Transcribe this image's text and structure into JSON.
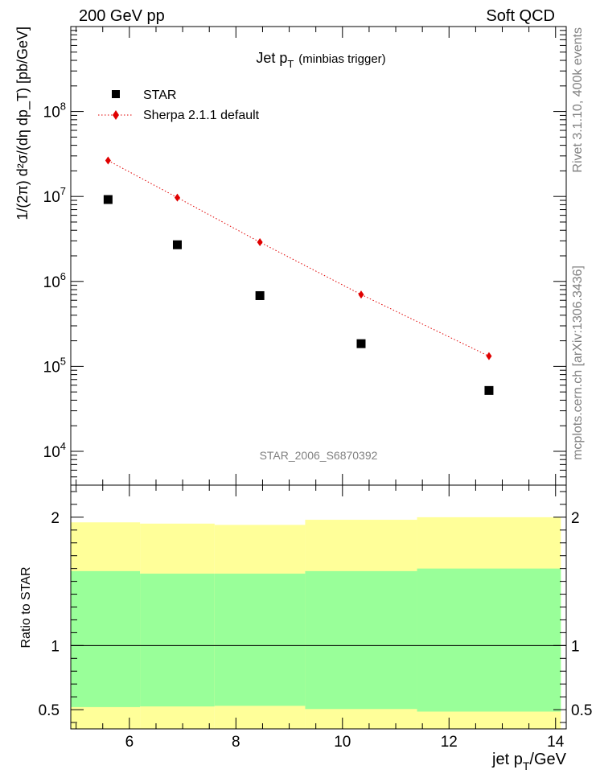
{
  "header": {
    "left": "200 GeV pp",
    "right": "Soft QCD"
  },
  "side_labels": {
    "upper": "Rivet 3.1.10,  400k events",
    "lower": "mcplots.cern.ch [arXiv:1306.3436]"
  },
  "chart_data": [
    {
      "type": "scatter",
      "title": "Jet p",
      "title_sub": "T",
      "title_note": "(minbias trigger)",
      "analysis_id": "STAR_2006_S6870392",
      "ylabel": "1/(2π) d²σ/(dη dp_T) [pb/GeV]",
      "yscale": "log",
      "ylim": [
        4000,
        1000000000
      ],
      "xlim": [
        4.9,
        14.2
      ],
      "y_ticks": [
        {
          "exp": "4",
          "value": 10000
        },
        {
          "exp": "5",
          "value": 100000
        },
        {
          "exp": "6",
          "value": 1000000
        },
        {
          "exp": "7",
          "value": 10000000
        },
        {
          "exp": "8",
          "value": 100000000
        }
      ],
      "tick_base": "10",
      "series": [
        {
          "name": "STAR",
          "marker": "square",
          "color": "#000000",
          "x": [
            5.6,
            6.9,
            8.45,
            10.35,
            12.75
          ],
          "values": [
            9200000,
            2700000,
            680000,
            185000,
            52000
          ]
        },
        {
          "name": "Sherpa 2.1.1 default",
          "marker": "diamond",
          "line": "dotted",
          "color": "#e00000",
          "x": [
            5.6,
            6.9,
            8.45,
            10.35,
            12.75
          ],
          "values": [
            26500000,
            9700000,
            2900000,
            700000,
            132000
          ]
        }
      ]
    },
    {
      "type": "area",
      "ylabel": "Ratio to STAR",
      "xlabel": "jet p",
      "xlabel_sub": "T",
      "xlabel_unit": "/GeV",
      "xlim": [
        4.9,
        14.2
      ],
      "ylim": [
        0.35,
        2.25
      ],
      "x_ticks": [
        "6",
        "8",
        "10",
        "12",
        "14"
      ],
      "y_ticks": [
        "0.5",
        "1",
        "2"
      ],
      "reference_line": 1,
      "bands": {
        "bin_edges": [
          4.9,
          6.2,
          7.6,
          9.3,
          11.4,
          14.1
        ],
        "yellow_color": "#ffff99",
        "green_color": "#99ff99",
        "yellow_low": [
          0.35,
          0.35,
          0.35,
          0.35,
          0.35
        ],
        "yellow_high": [
          1.96,
          1.95,
          1.94,
          1.98,
          2.0
        ],
        "green_low": [
          0.52,
          0.525,
          0.53,
          0.505,
          0.485
        ],
        "green_high": [
          1.58,
          1.56,
          1.56,
          1.58,
          1.6
        ]
      }
    }
  ]
}
